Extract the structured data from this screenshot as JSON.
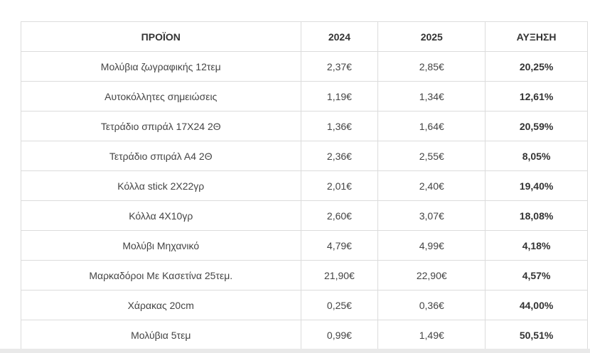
{
  "table": {
    "headers": [
      "ΠΡΟΪΟΝ",
      "2024",
      "2025",
      "ΑΥΞΗΣΗ"
    ],
    "rows": [
      [
        "Μολύβια ζωγραφικής 12τεμ",
        "2,37€",
        "2,85€",
        "20,25%"
      ],
      [
        "Αυτοκόλλητες σημειώσεις",
        "1,19€",
        "1,34€",
        "12,61%"
      ],
      [
        "Τετράδιο σπιράλ 17Χ24 2Θ",
        "1,36€",
        "1,64€",
        "20,59%"
      ],
      [
        "Τετράδιο σπιράλ Α4 2Θ",
        "2,36€",
        "2,55€",
        "8,05%"
      ],
      [
        "Κόλλα stick 2X22γρ",
        "2,01€",
        "2,40€",
        "19,40%"
      ],
      [
        "Κόλλα 4Χ10γρ",
        "2,60€",
        "3,07€",
        "18,08%"
      ],
      [
        "Μολύβι Μηχανικό",
        "4,79€",
        "4,99€",
        "4,18%"
      ],
      [
        "Μαρκαδόροι Με Κασετίνα 25τεμ.",
        "21,90€",
        "22,90€",
        "4,57%"
      ],
      [
        "Χάρακας 20cm",
        "0,25€",
        "0,36€",
        "44,00%"
      ],
      [
        "Μολύβια 5τεμ",
        "0,99€",
        "1,49€",
        "50,51%"
      ]
    ]
  }
}
